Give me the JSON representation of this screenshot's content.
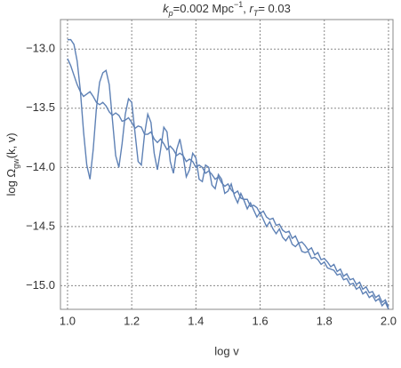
{
  "chart_data": {
    "type": "line",
    "title": [
      "k",
      "p",
      "=0.002 Mpc",
      "−1",
      ", ",
      "r",
      "T",
      "= 0.03"
    ],
    "xlabel": "log v",
    "ylabel": [
      "log Ω",
      "gw",
      "(k, v)"
    ],
    "x": [
      1.0,
      1.01,
      1.02,
      1.03,
      1.04,
      1.05,
      1.06,
      1.07,
      1.08,
      1.09,
      1.1,
      1.11,
      1.12,
      1.13,
      1.14,
      1.15,
      1.16,
      1.17,
      1.18,
      1.19,
      1.2,
      1.21,
      1.22,
      1.23,
      1.24,
      1.25,
      1.26,
      1.27,
      1.28,
      1.29,
      1.3,
      1.31,
      1.32,
      1.33,
      1.34,
      1.35,
      1.36,
      1.37,
      1.38,
      1.39,
      1.4,
      1.41,
      1.42,
      1.43,
      1.44,
      1.45,
      1.46,
      1.47,
      1.48,
      1.49,
      1.5,
      1.51,
      1.52,
      1.53,
      1.54,
      1.55,
      1.56,
      1.57,
      1.58,
      1.59,
      1.6,
      1.61,
      1.62,
      1.63,
      1.64,
      1.65,
      1.66,
      1.67,
      1.68,
      1.69,
      1.7,
      1.71,
      1.72,
      1.73,
      1.74,
      1.75,
      1.76,
      1.77,
      1.78,
      1.79,
      1.8,
      1.81,
      1.82,
      1.83,
      1.84,
      1.85,
      1.86,
      1.87,
      1.88,
      1.89,
      1.9,
      1.91,
      1.92,
      1.93,
      1.94,
      1.95,
      1.96,
      1.97,
      1.98,
      1.99,
      2.0
    ],
    "series": [
      {
        "color": "#5e81b5",
        "values": [
          -13.08,
          -13.14,
          -13.22,
          -13.3,
          -13.36,
          -13.4,
          -13.38,
          -13.36,
          -13.4,
          -13.45,
          -13.47,
          -13.45,
          -13.48,
          -13.53,
          -13.56,
          -13.54,
          -13.56,
          -13.61,
          -13.6,
          -13.58,
          -13.62,
          -13.67,
          -13.65,
          -13.66,
          -13.72,
          -13.72,
          -13.7,
          -13.76,
          -13.79,
          -13.76,
          -13.8,
          -13.85,
          -13.82,
          -13.85,
          -13.9,
          -13.88,
          -13.9,
          -13.95,
          -13.93,
          -13.95,
          -14.0,
          -13.98,
          -14.0,
          -14.05,
          -14.03,
          -14.06,
          -14.1,
          -14.08,
          -14.13,
          -14.16,
          -14.14,
          -14.19,
          -14.22,
          -14.2,
          -14.26,
          -14.27,
          -14.27,
          -14.33,
          -14.32,
          -14.34,
          -14.39,
          -14.37,
          -14.42,
          -14.44,
          -14.43,
          -14.49,
          -14.48,
          -14.53,
          -14.55,
          -14.54,
          -14.6,
          -14.58,
          -14.64,
          -14.63,
          -14.66,
          -14.7,
          -14.68,
          -14.74,
          -14.72,
          -14.78,
          -14.77,
          -14.8,
          -14.84,
          -14.82,
          -14.88,
          -14.86,
          -14.92,
          -14.9,
          -14.95,
          -14.94,
          -14.99,
          -14.97,
          -15.03,
          -15.01,
          -15.06,
          -15.05,
          -15.1,
          -15.08,
          -15.14,
          -15.12,
          -15.18
        ]
      },
      {
        "color": "#5e81b5",
        "values": [
          -12.92,
          -12.92,
          -12.96,
          -13.1,
          -13.35,
          -13.7,
          -13.98,
          -14.1,
          -13.85,
          -13.5,
          -13.28,
          -13.2,
          -13.18,
          -13.3,
          -13.6,
          -13.9,
          -14.0,
          -13.8,
          -13.55,
          -13.42,
          -13.45,
          -13.7,
          -13.95,
          -13.98,
          -13.72,
          -13.55,
          -13.62,
          -13.88,
          -14.02,
          -13.85,
          -13.66,
          -13.7,
          -13.95,
          -14.05,
          -13.85,
          -13.76,
          -13.9,
          -14.08,
          -14.02,
          -13.88,
          -13.92,
          -14.1,
          -14.12,
          -13.98,
          -14.0,
          -14.15,
          -14.18,
          -14.06,
          -14.1,
          -14.22,
          -14.2,
          -14.14,
          -14.24,
          -14.3,
          -14.22,
          -14.28,
          -14.35,
          -14.3,
          -14.36,
          -14.42,
          -14.38,
          -14.44,
          -14.5,
          -14.46,
          -14.52,
          -14.56,
          -14.52,
          -14.59,
          -14.62,
          -14.58,
          -14.65,
          -14.67,
          -14.64,
          -14.71,
          -14.72,
          -14.71,
          -14.77,
          -14.76,
          -14.78,
          -14.82,
          -14.8,
          -14.85,
          -14.86,
          -14.87,
          -14.91,
          -14.9,
          -14.95,
          -14.94,
          -14.99,
          -14.98,
          -15.03,
          -15.01,
          -15.07,
          -15.05,
          -15.1,
          -15.08,
          -15.13,
          -15.11,
          -15.17,
          -15.14,
          -15.2
        ]
      }
    ],
    "xlim": [
      0.978,
      2.014
    ],
    "ylim": [
      -15.2,
      -12.75
    ],
    "xticks": [
      {
        "value": 1,
        "label": "1.0"
      },
      1.2,
      1.4,
      1.6,
      1.8,
      {
        "value": 2,
        "label": "2.0"
      }
    ],
    "yticks": [
      {
        "value": -13,
        "label": "−13.0"
      },
      {
        "value": -13.5,
        "label": "−13.5"
      },
      {
        "value": -14,
        "label": "−14.0"
      },
      {
        "value": -14.5,
        "label": "−14.5"
      },
      {
        "value": -15,
        "label": "−15.0"
      }
    ],
    "grid": true
  }
}
